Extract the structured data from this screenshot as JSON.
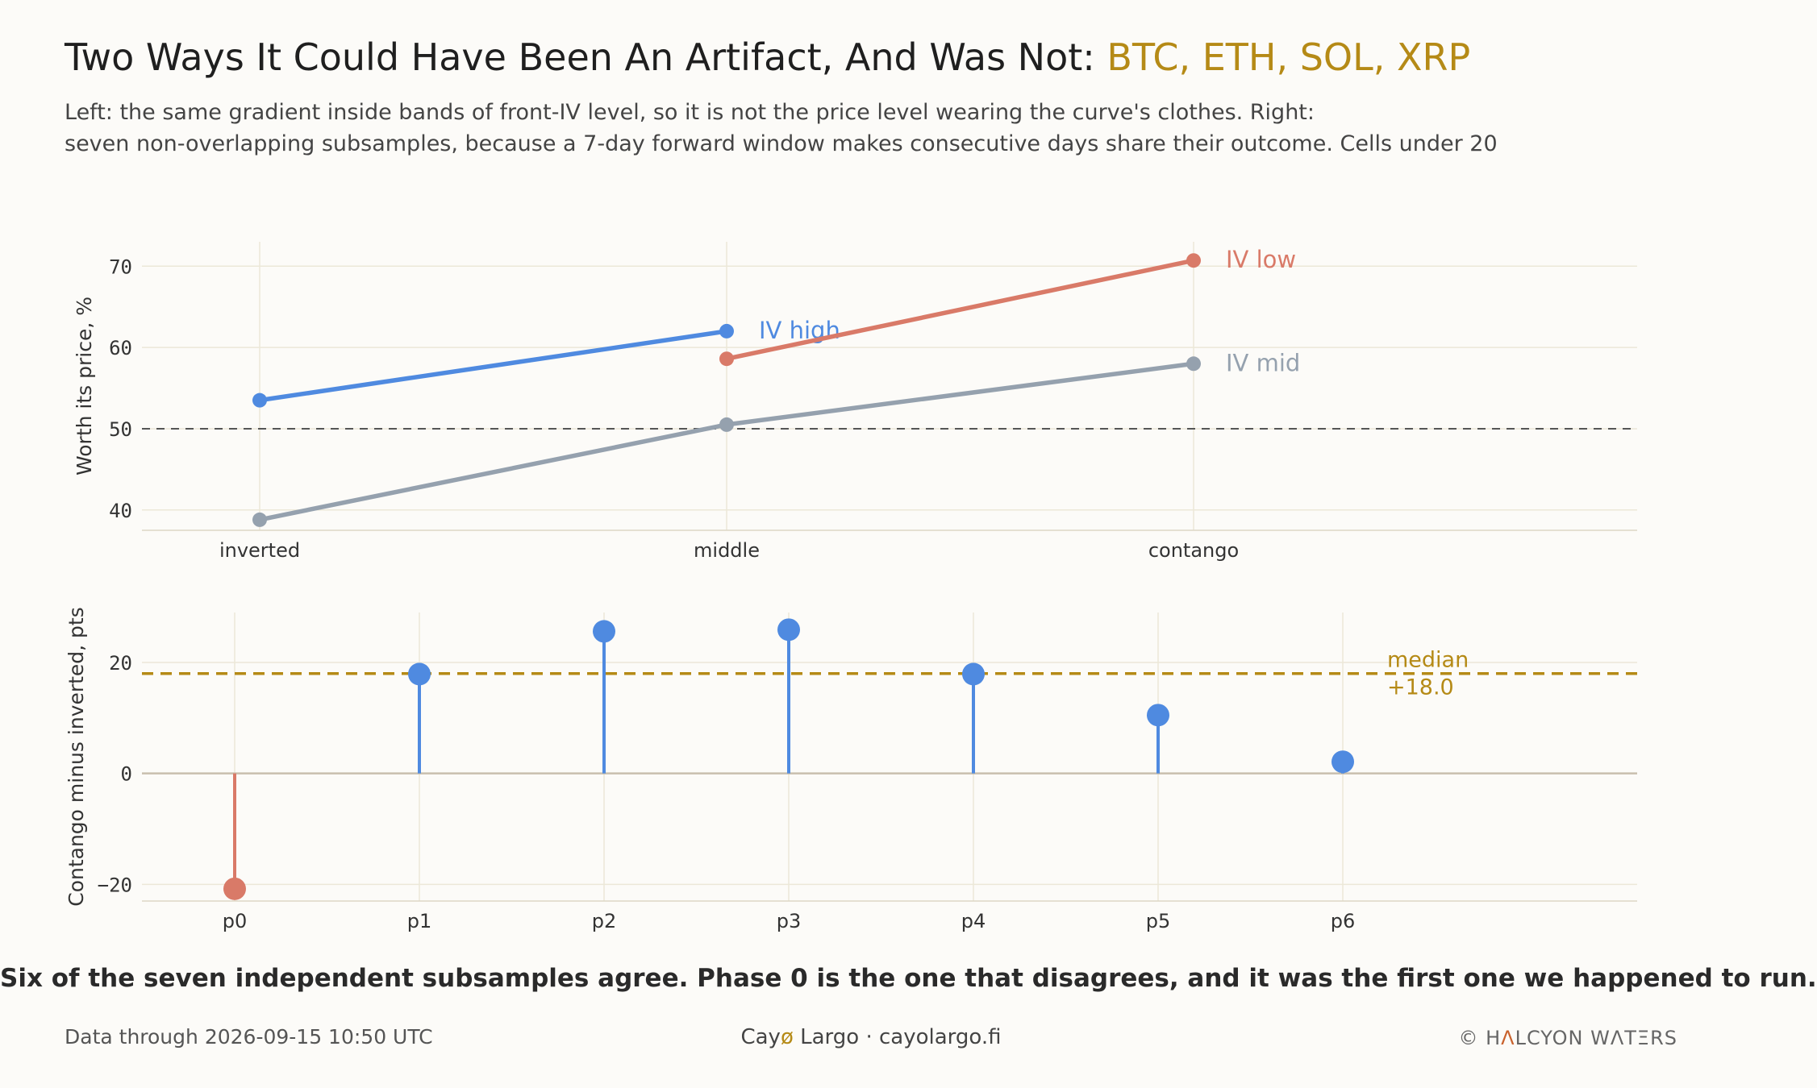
{
  "header": {
    "title_main": "Two Ways It Could Have Been An Artifact, And Was Not: ",
    "title_highlight": "BTC, ETH, SOL, XRP",
    "subtitle_line1": "Left: the same gradient inside bands of front-IV level, so it is not the price level wearing the curve's clothes. Right:",
    "subtitle_line2": "seven non-overlapping subsamples, because a 7-day forward window makes consecutive days share their outcome. Cells under 20"
  },
  "colors": {
    "iv_high": "#4f8ae0",
    "iv_low": "#d97a68",
    "iv_mid": "#95a1ae",
    "accent": "#b58a16",
    "negative": "#d97a68",
    "positive": "#4f8ae0",
    "grid": "#ece8d8",
    "reference": "#555555"
  },
  "chart_data": [
    {
      "type": "line",
      "ylabel": "Worth its price, %",
      "categories": [
        "inverted",
        "middle",
        "contango"
      ],
      "ylim": [
        37.5,
        73
      ],
      "yticks": [
        40,
        50,
        60,
        70
      ],
      "reference_line": 50,
      "grid": true,
      "series": [
        {
          "name": "IV high",
          "x": [
            "inverted",
            "middle"
          ],
          "values": [
            53.5,
            62.0
          ]
        },
        {
          "name": "IV low",
          "x": [
            "middle",
            "contango"
          ],
          "values": [
            58.6,
            70.7
          ]
        },
        {
          "name": "IV mid",
          "x": [
            "inverted",
            "middle",
            "contango"
          ],
          "values": [
            38.8,
            50.5,
            58.0
          ]
        }
      ]
    },
    {
      "type": "lollipop",
      "ylabel": "Contango minus inverted, pts",
      "categories": [
        "p0",
        "p1",
        "p2",
        "p3",
        "p4",
        "p5",
        "p6"
      ],
      "values": [
        -20.8,
        17.9,
        25.6,
        25.9,
        17.9,
        10.5,
        2.1
      ],
      "ylim": [
        -23,
        29
      ],
      "yticks": [
        -20,
        0,
        20
      ],
      "median": 18.0,
      "median_label_line1": "median",
      "median_label_line2": "+18.0",
      "grid": true
    }
  ],
  "conclusion": "Six of the seven independent subsamples agree. Phase 0 is the one that disagrees, and it was the first one we happened to run.",
  "footer": {
    "data_note": "Data through 2026-09-15 10:50 UTC",
    "brand_part1": "Cay",
    "brand_o": "ø",
    "brand_part2": " Largo  ·  cayolargo.fi",
    "copyright_prefix": "© H",
    "copyright_a": "Λ",
    "copyright_suffix": "LCYON WΛTΞRS"
  }
}
